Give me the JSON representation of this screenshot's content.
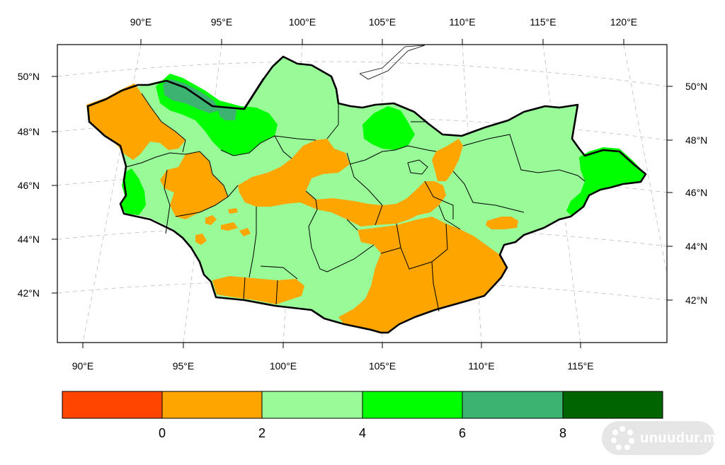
{
  "map": {
    "top_lon_labels": [
      "90°E",
      "95°E",
      "100°E",
      "105°E",
      "110°E",
      "115°E",
      "120°E"
    ],
    "bottom_lon_labels": [
      "90°E",
      "95°E",
      "100°E",
      "105°E",
      "110°E",
      "115°E"
    ],
    "left_lat_labels": [
      "50°N",
      "48°N",
      "46°N",
      "44°N",
      "42°N"
    ],
    "right_lat_labels": [
      "50°N",
      "48°N",
      "46°N",
      "44°N",
      "42°N"
    ],
    "class_colors": {
      "lt0": "#ff4500",
      "c0_2": "#ffa500",
      "c2_4": "#98fb98",
      "c4_6": "#00ff00",
      "c6_8": "#3cb371",
      "gt8": "#006400"
    }
  },
  "colorbar": {
    "colors": [
      "#ff4500",
      "#ffa500",
      "#98fb98",
      "#00ff00",
      "#3cb371",
      "#006400"
    ],
    "labels": [
      "0",
      "2",
      "4",
      "6",
      "8"
    ]
  },
  "watermark": {
    "text": "unuudur.mn"
  }
}
